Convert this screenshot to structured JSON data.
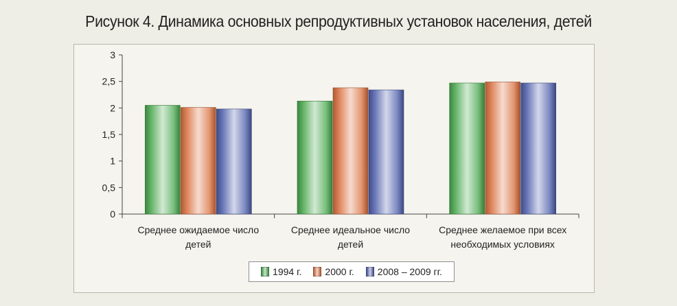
{
  "chart_data": {
    "type": "bar",
    "title": "Рисунок 4. Динамика основных репродуктивных установок населения, детей",
    "categories": [
      [
        "Среднее ожидаемое число",
        "детей"
      ],
      [
        "Среднее идеальное число",
        "детей"
      ],
      [
        "Среднее желаемое при всех",
        "необходимых условиях"
      ]
    ],
    "series": [
      {
        "name": "1994 г.",
        "values": [
          2.05,
          2.13,
          2.47
        ],
        "color": "#4aa84f"
      },
      {
        "name": "2000 г.",
        "values": [
          2.01,
          2.38,
          2.49
        ],
        "color": "#d9703f"
      },
      {
        "name": "2008 – 2009 гг.",
        "values": [
          1.98,
          2.34,
          2.47
        ],
        "color": "#4f5fab"
      }
    ],
    "yticks": [
      "0",
      "0,5",
      "1",
      "1,5",
      "2",
      "2,5",
      "3"
    ],
    "ylim": [
      0,
      3
    ],
    "grid": false,
    "legend_position": "bottom"
  }
}
